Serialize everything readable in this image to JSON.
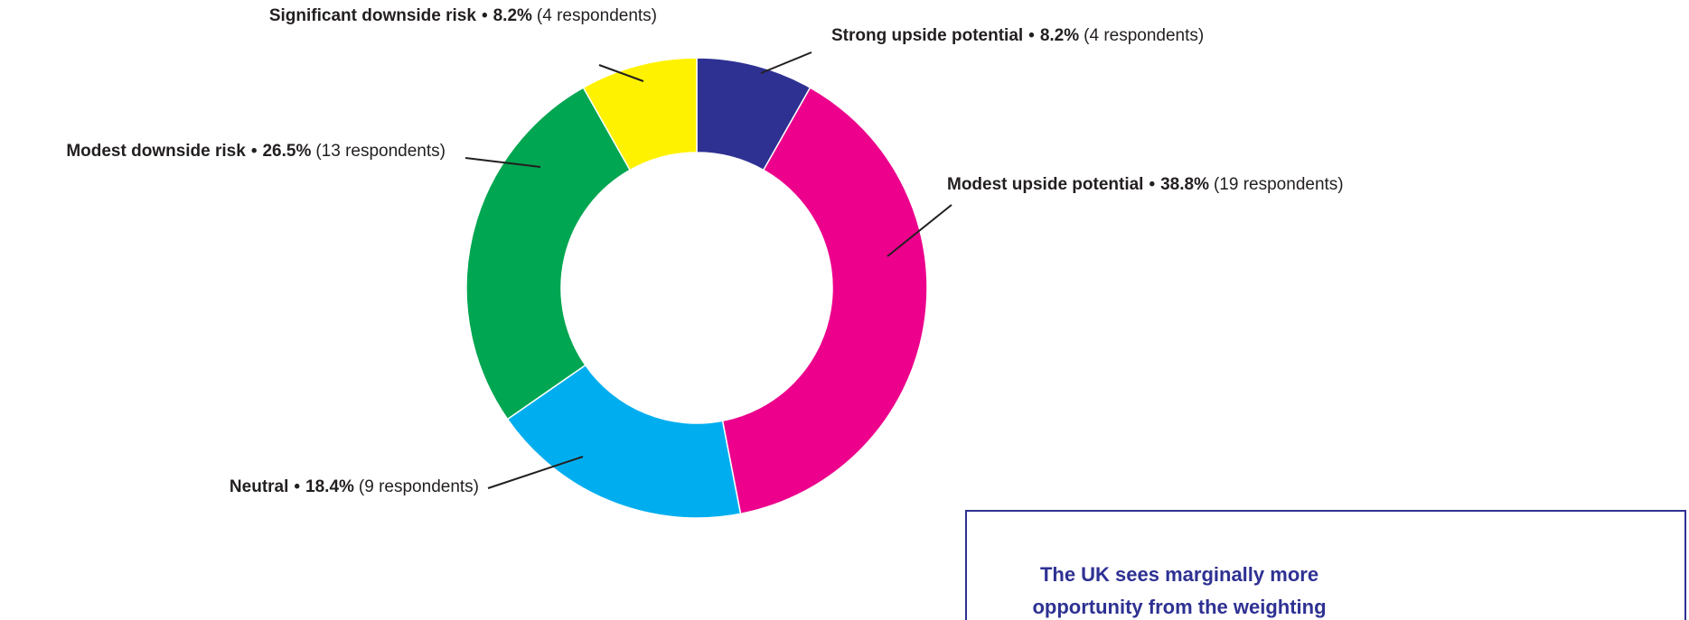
{
  "chart_data": {
    "type": "donut",
    "categories": [
      "Strong upside potential",
      "Modest upside potential",
      "Neutral",
      "Modest downside risk",
      "Significant downside risk"
    ],
    "values": [
      8.2,
      38.8,
      18.4,
      26.5,
      8.2
    ],
    "value_labels": [
      "8.2%",
      "38.8%",
      "18.4%",
      "26.5%",
      "8.2%"
    ],
    "respondent_labels": [
      "(4 respondents)",
      "(19 respondents)",
      "(9 respondents)",
      "(13 respondents)",
      "(4 respondents)"
    ],
    "label_separator": "•",
    "colors": [
      "#2e3192",
      "#ec008c",
      "#00aeef",
      "#00a651",
      "#fff200"
    ]
  },
  "callout": {
    "lines": [
      "The UK sees marginally more",
      "opportunity from the weighting"
    ]
  }
}
